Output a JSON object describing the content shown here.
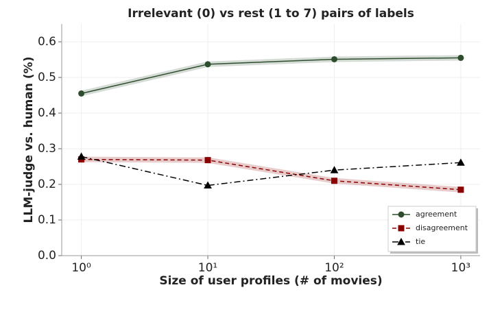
{
  "chart_data": {
    "type": "line",
    "title": "Irrelevant (0) vs rest (1 to 7) pairs of labels",
    "xlabel": "Size of user profiles (# of movies)",
    "ylabel": "LLM-judge vs. human (%)",
    "x": [
      1,
      10,
      100,
      1000
    ],
    "xscale": "log",
    "xlim": [
      0.7,
      1420
    ],
    "xticks": [
      {
        "value": 1,
        "label": "10⁰"
      },
      {
        "value": 10,
        "label": "10¹"
      },
      {
        "value": 100,
        "label": "10²"
      },
      {
        "value": 1000,
        "label": "10³"
      }
    ],
    "ylim": [
      0,
      0.65
    ],
    "yticks": [
      {
        "value": 0,
        "label": "0.0"
      },
      0.1,
      0.2,
      0.3,
      0.4,
      0.5,
      0.6
    ],
    "grid": true,
    "legend": "lower right",
    "series": [
      {
        "name": "agreement",
        "color": "#2e4d2e",
        "marker": "circle",
        "linestyle": "solid",
        "band": true,
        "values": [
          0.455,
          0.537,
          0.551,
          0.555
        ]
      },
      {
        "name": "disagreement",
        "color": "#8b0000",
        "marker": "square",
        "linestyle": "dashed",
        "band": true,
        "values": [
          0.27,
          0.268,
          0.21,
          0.185
        ]
      },
      {
        "name": "tie",
        "color": "#000000",
        "marker": "triangle",
        "linestyle": "dashdot",
        "band": false,
        "values": [
          0.278,
          0.197,
          0.24,
          0.261
        ]
      }
    ]
  }
}
